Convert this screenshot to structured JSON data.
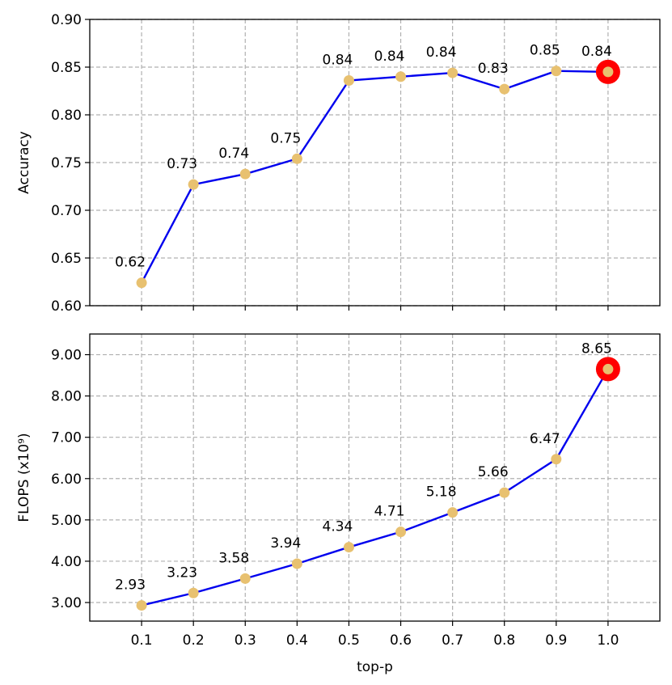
{
  "chart_data": [
    {
      "type": "line",
      "ylabel": "Accuracy",
      "xlabel": "",
      "x": [
        0.1,
        0.2,
        0.3,
        0.4,
        0.5,
        0.6,
        0.7,
        0.8,
        0.9,
        1.0
      ],
      "x_tick_labels": [],
      "ylim": [
        0.6,
        0.9
      ],
      "yticks": [
        0.6,
        0.65,
        0.7,
        0.75,
        0.8,
        0.85,
        0.9
      ],
      "ytick_labels": [
        "0.60",
        "0.65",
        "0.70",
        "0.75",
        "0.80",
        "0.85",
        "0.90"
      ],
      "grid": true,
      "series": [
        {
          "values": [
            0.624,
            0.727,
            0.738,
            0.754,
            0.836,
            0.84,
            0.844,
            0.827,
            0.846,
            0.845
          ],
          "labels": [
            "0.62",
            "0.73",
            "0.74",
            "0.75",
            "0.84",
            "0.84",
            "0.84",
            "0.83",
            "0.85",
            "0.84"
          ],
          "line_color": "#0000ee",
          "marker_color": "#e8c170"
        }
      ],
      "highlight_index": 9,
      "highlight_color": "#ff0000"
    },
    {
      "type": "line",
      "ylabel": "FLOPS (x10⁹)",
      "xlabel": "top-p",
      "x": [
        0.1,
        0.2,
        0.3,
        0.4,
        0.5,
        0.6,
        0.7,
        0.8,
        0.9,
        1.0
      ],
      "x_tick_labels": [
        "0.1",
        "0.2",
        "0.3",
        "0.4",
        "0.5",
        "0.6",
        "0.7",
        "0.8",
        "0.9",
        "1.0"
      ],
      "ylim": [
        2.55,
        9.5
      ],
      "yticks": [
        3,
        4,
        5,
        6,
        7,
        8,
        9
      ],
      "ytick_labels": [
        "3.00",
        "4.00",
        "5.00",
        "6.00",
        "7.00",
        "8.00",
        "9.00"
      ],
      "grid": true,
      "series": [
        {
          "values": [
            2.93,
            3.23,
            3.58,
            3.94,
            4.34,
            4.71,
            5.18,
            5.66,
            6.47,
            8.65
          ],
          "labels": [
            "2.93",
            "3.23",
            "3.58",
            "3.94",
            "4.34",
            "4.71",
            "5.18",
            "5.66",
            "6.47",
            "8.65"
          ],
          "line_color": "#0000ee",
          "marker_color": "#e8c170"
        }
      ],
      "highlight_index": 9,
      "highlight_color": "#ff0000"
    }
  ]
}
